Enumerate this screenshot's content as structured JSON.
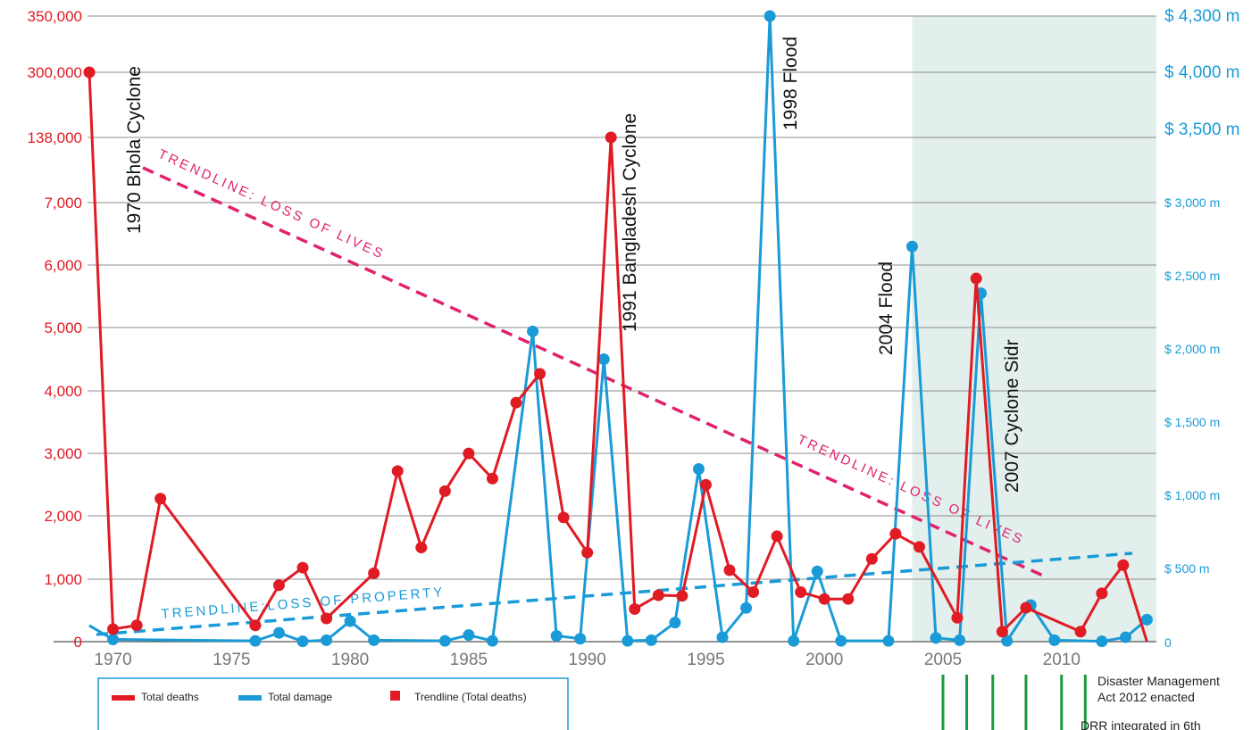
{
  "chart_data": {
    "type": "line",
    "x_ticks": [
      "1970",
      "1975",
      "1980",
      "1985",
      "1990",
      "1995",
      "2000",
      "2005",
      "2010"
    ],
    "left_axis": {
      "tick_labels": [
        "0",
        "1,000",
        "2,000",
        "3,000",
        "4,000",
        "5,000",
        "6,000",
        "7,000",
        "138,000",
        "300,000",
        "350,000"
      ],
      "color": "#e01b24"
    },
    "right_axis": {
      "tick_labels": [
        "0",
        "$ 500 m",
        "$ 1,000 m",
        "$ 1,500 m",
        "$ 2,000 m",
        "$ 2,500 m",
        "$ 3,000 m",
        "$ 3,500 m",
        "$ 4,000 m",
        "$ 4,300 m"
      ],
      "color": "#1a9bd7"
    },
    "shaded_region": {
      "x_start": 2003.7,
      "x_end": 2014,
      "color": "#e2efec"
    },
    "series": [
      {
        "name": "Total deaths",
        "color": "#e01b24",
        "points": [
          [
            1969,
            300000
          ],
          [
            1970,
            200
          ],
          [
            1971,
            260
          ],
          [
            1972,
            2280
          ],
          [
            1976,
            260
          ],
          [
            1977,
            900
          ],
          [
            1978,
            1180
          ],
          [
            1979,
            370
          ],
          [
            1981,
            1090
          ],
          [
            1982,
            2720
          ],
          [
            1983,
            1500
          ],
          [
            1984,
            2400
          ],
          [
            1985,
            3000
          ],
          [
            1986,
            2600
          ],
          [
            1987,
            3810
          ],
          [
            1988,
            4270
          ],
          [
            1989,
            1980
          ],
          [
            1990,
            1420
          ],
          [
            1991,
            138000
          ],
          [
            1992,
            520
          ],
          [
            1993,
            740
          ],
          [
            1994,
            730
          ],
          [
            1995,
            2500
          ],
          [
            1996,
            1140
          ],
          [
            1997,
            790
          ],
          [
            1998,
            1680
          ],
          [
            1999,
            790
          ],
          [
            2000,
            680
          ],
          [
            2001,
            680
          ],
          [
            2002,
            1320
          ],
          [
            2003,
            1720
          ],
          [
            2004,
            1510
          ],
          [
            2005.6,
            380
          ],
          [
            2006.4,
            5790
          ],
          [
            2007.5,
            160
          ],
          [
            2008.5,
            540
          ],
          [
            2010.8,
            160
          ],
          [
            2011.7,
            770
          ],
          [
            2012.6,
            1220
          ],
          [
            2013.6,
            0
          ]
        ]
      },
      {
        "name": "Total damage",
        "color": "#1a9bd7",
        "points": [
          [
            1969,
            110
          ],
          [
            1970,
            15
          ],
          [
            1976,
            5
          ],
          [
            1977,
            60
          ],
          [
            1978,
            2
          ],
          [
            1979,
            10
          ],
          [
            1980,
            140
          ],
          [
            1981,
            10
          ],
          [
            1984,
            5
          ],
          [
            1985,
            45
          ],
          [
            1986,
            5
          ],
          [
            1987.7,
            2120
          ],
          [
            1988.7,
            40
          ],
          [
            1989.7,
            20
          ],
          [
            1990.7,
            1930
          ],
          [
            1991.7,
            5
          ],
          [
            1992.7,
            10
          ],
          [
            1993.7,
            130
          ],
          [
            1994.7,
            1180
          ],
          [
            1995.7,
            30
          ],
          [
            1996.7,
            230
          ],
          [
            1997.7,
            4300
          ],
          [
            1998.7,
            5
          ],
          [
            1999.7,
            480
          ],
          [
            2000.7,
            5
          ],
          [
            2002.7,
            5
          ],
          [
            2003.7,
            2700
          ],
          [
            2004.7,
            25
          ],
          [
            2005.7,
            10
          ],
          [
            2006.6,
            2380
          ],
          [
            2007.7,
            5
          ],
          [
            2008.7,
            250
          ],
          [
            2009.7,
            10
          ],
          [
            2011.7,
            2
          ],
          [
            2012.7,
            30
          ],
          [
            2013.6,
            150
          ]
        ]
      }
    ],
    "trendlines": [
      {
        "name": "Trendline (Total deaths)",
        "label": "TRENDLINE: LOSS OF LIVES",
        "label2": "TRENDLINE: LOSS OF LIVES",
        "color": "#e0226e"
      },
      {
        "name": "Trendline (Total damage)",
        "label": "TRENDLINE:LOSS OF PROPERTY",
        "color": "#1a9bd7"
      }
    ],
    "annotations": [
      {
        "x": 1970,
        "text": "1970 Bhola Cyclone"
      },
      {
        "x": 1991,
        "text": "1991 Bangladesh Cyclone"
      },
      {
        "x": 1998,
        "text": "1998 Flood"
      },
      {
        "x": 2004,
        "text": "2004 Flood"
      },
      {
        "x": 2007,
        "text": "2007 Cyclone Sidr"
      }
    ],
    "legend": [
      {
        "label": "Total deaths",
        "color": "#e01b24"
      },
      {
        "label": "Total damage",
        "color": "#1a9bd7"
      },
      {
        "label": "Trendline (Total deaths)",
        "color": "#e01b24"
      }
    ],
    "policy_notes": [
      {
        "x": 2011.5,
        "lines": [
          "Disaster Management",
          "Act 2012 enacted"
        ]
      },
      {
        "x": 2011.5,
        "lines": [
          "DRR integrated in 6th"
        ]
      }
    ],
    "policy_marker_years": [
      2005.0,
      2006.0,
      2007.1,
      2008.5,
      2010.0,
      2011.0
    ],
    "policy_marker_color": "#1a9a3c"
  }
}
